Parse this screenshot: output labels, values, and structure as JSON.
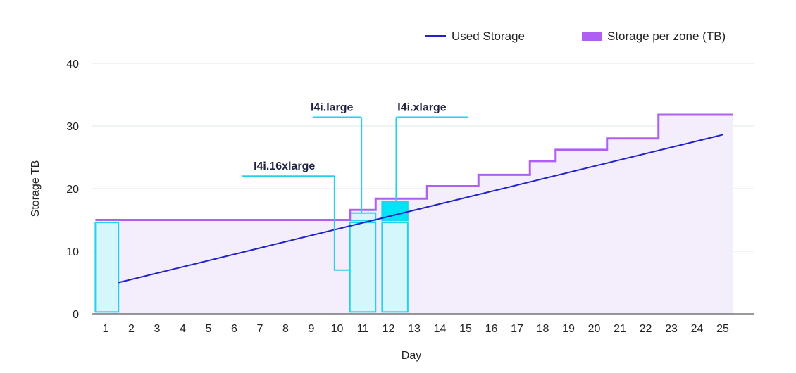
{
  "chart_data": {
    "type": "line",
    "xlabel": "Day",
    "ylabel": "Storage TB",
    "x_ticks": [
      1,
      2,
      3,
      4,
      5,
      6,
      7,
      8,
      9,
      10,
      11,
      12,
      13,
      14,
      15,
      16,
      17,
      18,
      19,
      20,
      21,
      22,
      23,
      24,
      25
    ],
    "y_ticks": [
      0,
      10,
      20,
      30,
      40
    ],
    "xlim": [
      0.6,
      26.2
    ],
    "ylim": [
      0,
      40
    ],
    "legend_position": "top-right",
    "grid": "horizontal",
    "series": [
      {
        "name": "Used Storage",
        "kind": "line",
        "color": "#2222cc",
        "x": [
          1.5,
          25
        ],
        "y": [
          5,
          28.6
        ]
      },
      {
        "name": "Storage per zone (TB)",
        "kind": "step",
        "color": "#b060f0",
        "fill": "#f4eefc",
        "steps": [
          {
            "x_start": 0.6,
            "x_end": 10.5,
            "y": 15
          },
          {
            "x_start": 10.5,
            "x_end": 11.5,
            "y": 16.6
          },
          {
            "x_start": 11.5,
            "x_end": 13.5,
            "y": 18.4
          },
          {
            "x_start": 13.5,
            "x_end": 15.5,
            "y": 20.4
          },
          {
            "x_start": 15.5,
            "x_end": 17.5,
            "y": 22.2
          },
          {
            "x_start": 17.5,
            "x_end": 18.5,
            "y": 24.4
          },
          {
            "x_start": 18.5,
            "x_end": 20.5,
            "y": 26.2
          },
          {
            "x_start": 20.5,
            "x_end": 22.5,
            "y": 28
          },
          {
            "x_start": 22.5,
            "x_end": 25.4,
            "y": 31.8
          }
        ]
      }
    ],
    "instance_bars": [
      {
        "x_start": 0.6,
        "x_end": 1.5,
        "y_start": 0.3,
        "y_end": 14.6,
        "color": "#d5f6fb",
        "stroke": "#22d3e8"
      },
      {
        "x_start": 10.5,
        "x_end": 11.5,
        "y_start": 0.3,
        "y_end": 14.6,
        "color": "#d5f6fb",
        "stroke": "#22d3e8"
      },
      {
        "x_start": 10.5,
        "x_end": 11.5,
        "y_start": 14.9,
        "y_end": 16.1,
        "color": "#d5f6fb",
        "stroke": "#22d3e8"
      },
      {
        "x_start": 11.75,
        "x_end": 12.75,
        "y_start": 0.3,
        "y_end": 14.6,
        "color": "#d5f6fb",
        "stroke": "#22d3e8"
      },
      {
        "x_start": 11.75,
        "x_end": 12.75,
        "y_start": 14.9,
        "y_end": 17.9,
        "color": "#00e5f5",
        "stroke": "#22d3e8"
      }
    ],
    "annotations": [
      {
        "text": "I4i.16xlarge",
        "anchor_x": 9.9,
        "anchor_y": 22,
        "line_x_start": 6.3,
        "line_x_end": 9.9,
        "text_x": 7.95,
        "path": [
          [
            9.9,
            22
          ],
          [
            9.9,
            7
          ],
          [
            10.5,
            7
          ]
        ]
      },
      {
        "text": "I4i.large",
        "anchor_x": 10.95,
        "anchor_y": 31.4,
        "line_x_start": 9.05,
        "line_x_end": 10.95,
        "text_x": 9.8,
        "path": [
          [
            10.95,
            31.4
          ],
          [
            10.95,
            16.1
          ]
        ]
      },
      {
        "text": "I4i.xlarge",
        "anchor_x": 12.3,
        "anchor_y": 31.4,
        "line_x_start": 12.3,
        "line_x_end": 15.1,
        "text_x": 13.3,
        "path": [
          [
            12.3,
            31.4
          ],
          [
            12.3,
            17.9
          ]
        ]
      }
    ]
  }
}
